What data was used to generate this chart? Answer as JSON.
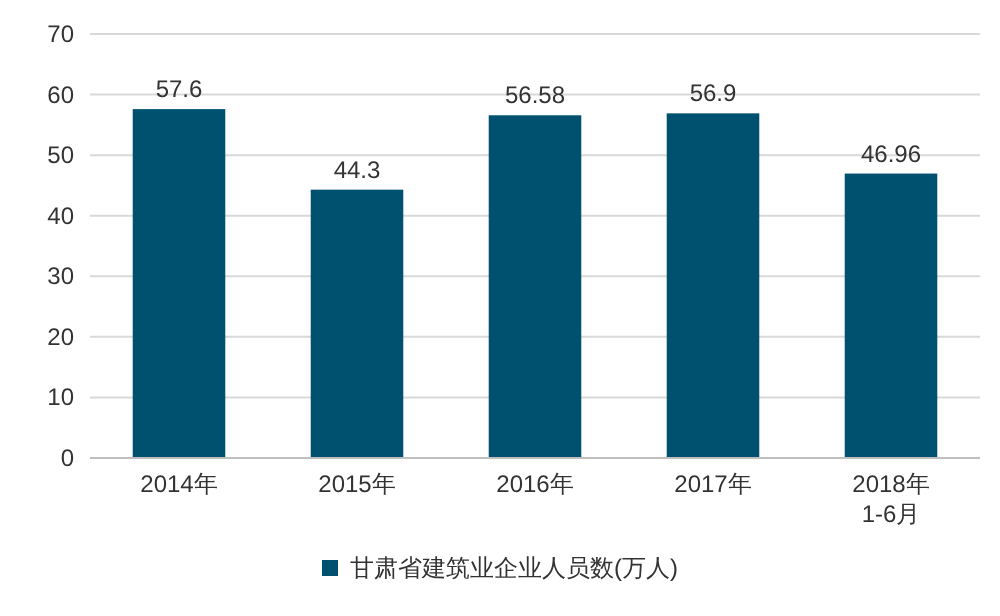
{
  "chart_data": {
    "type": "bar",
    "categories": [
      "2014年",
      "2015年",
      "2016年",
      "2017年",
      "2018年\n1-6月"
    ],
    "series": [
      {
        "name": "甘肃省建筑业企业人员数(万人)",
        "color": "#005170",
        "values": [
          57.6,
          44.3,
          56.58,
          56.9,
          46.96
        ]
      }
    ],
    "ylim": [
      0,
      70
    ],
    "yticks": [
      0,
      10,
      20,
      30,
      40,
      50,
      60,
      70
    ],
    "grid": "y",
    "legend": "bottom",
    "data_labels": true
  }
}
